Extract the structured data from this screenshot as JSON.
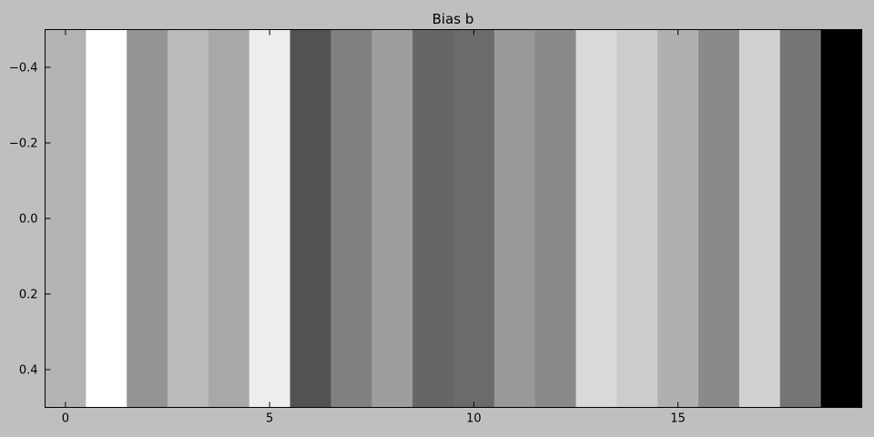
{
  "figure": {
    "background": "#bfbfbf"
  },
  "chart_data": {
    "type": "heatmap",
    "title": "Bias b",
    "xlabel": "",
    "ylabel": "",
    "colormap": "gray",
    "shape": [
      1,
      20
    ],
    "columns": [
      0,
      1,
      2,
      3,
      4,
      5,
      6,
      7,
      8,
      9,
      10,
      11,
      12,
      13,
      14,
      15,
      16,
      17,
      18,
      19
    ],
    "values": [
      0.7,
      1.0,
      0.58,
      0.73,
      0.66,
      0.93,
      0.32,
      0.5,
      0.62,
      0.4,
      0.42,
      0.6,
      0.54,
      0.85,
      0.8,
      0.69,
      0.54,
      0.82,
      0.46,
      0.0
    ],
    "xlim": [
      -0.5,
      19.5
    ],
    "ylim": [
      0.5,
      -0.5
    ],
    "y_inverted": true,
    "xticks": [
      0,
      5,
      10,
      15
    ],
    "xtick_labels": [
      "0",
      "5",
      "10",
      "15"
    ],
    "yticks": [
      -0.4,
      -0.2,
      0.0,
      0.2,
      0.4
    ],
    "ytick_labels": [
      "−0.4",
      "−0.2",
      "0.0",
      "0.2",
      "0.4"
    ],
    "grid": false,
    "legend": "none"
  }
}
